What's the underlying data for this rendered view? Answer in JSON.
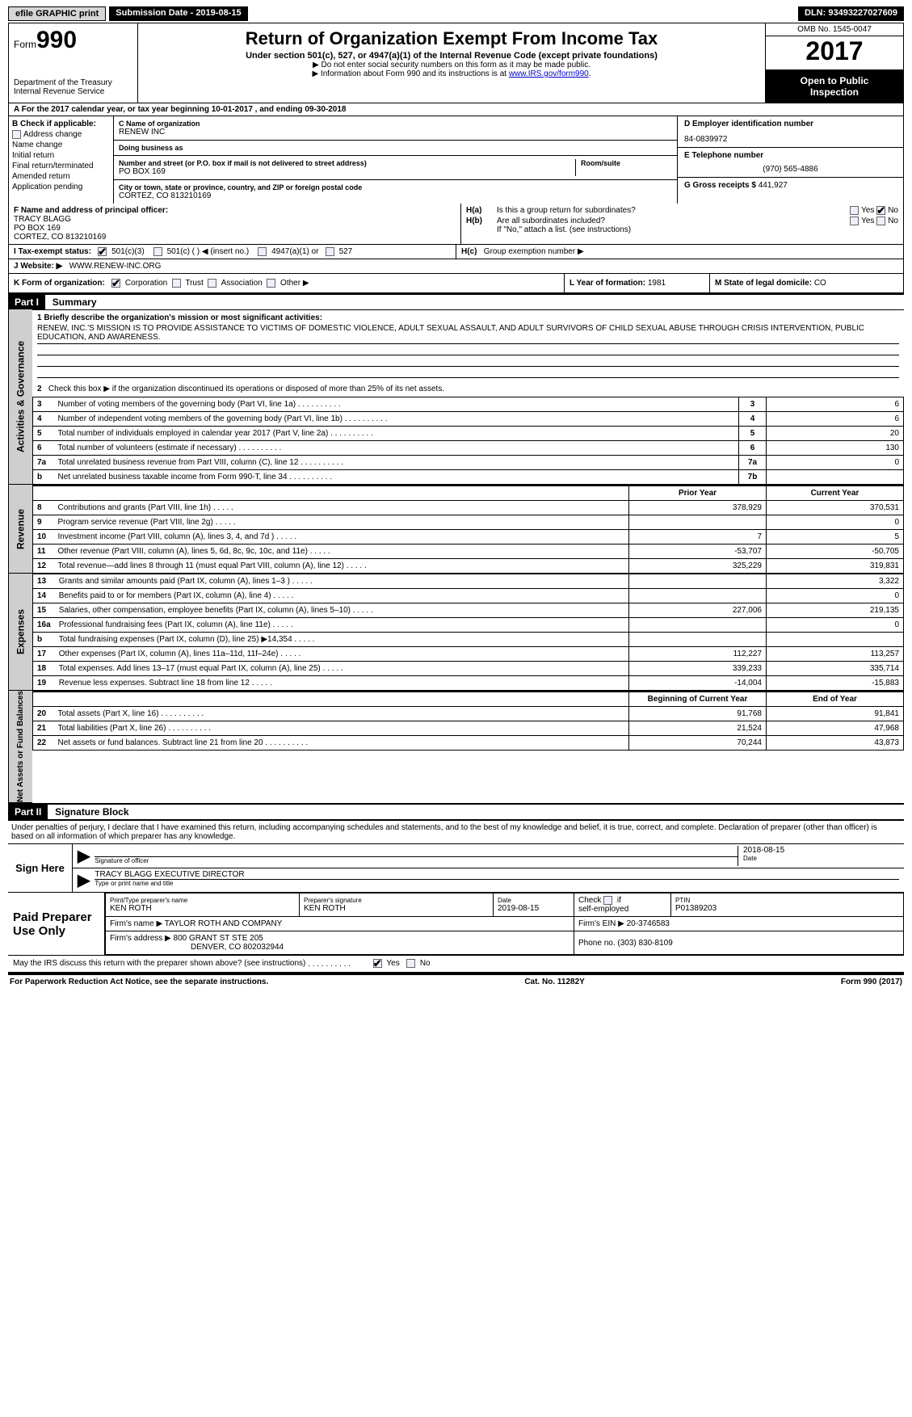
{
  "topbar": {
    "efile": "efile GRAPHIC print",
    "submission": "Submission Date - 2019-08-15",
    "dln": "DLN: 93493227027609"
  },
  "header": {
    "form_label": "Form",
    "form_number": "990",
    "dept1": "Department of the Treasury",
    "dept2": "Internal Revenue Service",
    "title": "Return of Organization Exempt From Income Tax",
    "subtitle": "Under section 501(c), 527, or 4947(a)(1) of the Internal Revenue Code (except private foundations)",
    "note1": "▶ Do not enter social security numbers on this form as it may be made public.",
    "note2_pre": "▶ Information about Form 990 and its instructions is at ",
    "note2_link": "www.IRS.gov/form990",
    "omb": "OMB No. 1545-0047",
    "year": "2017",
    "open1": "Open to Public",
    "open2": "Inspection"
  },
  "row_a": "A  For the 2017 calendar year, or tax year beginning 10-01-2017        , and ending 09-30-2018",
  "section_b": {
    "label": "B Check if applicable:",
    "items": [
      "Address change",
      "Name change",
      "Initial return",
      "Final return/terminated",
      "Amended return",
      "Application pending"
    ]
  },
  "section_c": {
    "name_label": "C Name of organization",
    "name": "RENEW INC",
    "dba_label": "Doing business as",
    "dba": "",
    "addr_label": "Number and street (or P.O. box if mail is not delivered to street address)",
    "room_label": "Room/suite",
    "addr": "PO BOX 169",
    "city_label": "City or town, state or province, country, and ZIP or foreign postal code",
    "city": "CORTEZ, CO  813210169"
  },
  "section_d": {
    "label": "D Employer identification number",
    "ein": "84-0839972",
    "e_label": "E Telephone number",
    "phone": "(970) 565-4886",
    "g_label": "G Gross receipts $",
    "g_val": "441,927"
  },
  "section_f": {
    "label": "F Name and address of principal officer:",
    "name": "TRACY BLAGG",
    "addr1": "PO BOX 169",
    "addr2": "CORTEZ, CO  813210169"
  },
  "section_h": {
    "ha": "Is this a group return for subordinates?",
    "hb": "Are all subordinates included?",
    "hb_note": "If \"No,\" attach a list. (see instructions)",
    "hc": "Group exemption number ▶",
    "yes": "Yes",
    "no": "No"
  },
  "section_i": {
    "label": "I    Tax-exempt status:",
    "opt1": "501(c)(3)",
    "opt2": "501(c) (  ) ◀ (insert no.)",
    "opt3": "4947(a)(1) or",
    "opt4": "527"
  },
  "section_j": {
    "label": "J    Website: ▶",
    "val": "WWW.RENEW-INC.ORG"
  },
  "section_k": {
    "label": "K Form of organization:",
    "opts": [
      "Corporation",
      "Trust",
      "Association",
      "Other ▶"
    ]
  },
  "section_l": {
    "label": "L Year of formation: ",
    "val": "1981"
  },
  "section_m": {
    "label": "M State of legal domicile: ",
    "val": "CO"
  },
  "part1": {
    "hdr": "Part I",
    "title": "Summary",
    "side_gov": "Activities & Governance",
    "side_rev": "Revenue",
    "side_exp": "Expenses",
    "side_net": "Net Assets or Fund Balances",
    "line1_label": "1   Briefly describe the organization's mission or most significant activities:",
    "mission": "RENEW, INC.'S MISSION IS TO PROVIDE ASSISTANCE TO VICTIMS OF DOMESTIC VIOLENCE, ADULT SEXUAL ASSAULT, AND ADULT SURVIVORS OF CHILD SEXUAL ABUSE THROUGH CRISIS INTERVENTION, PUBLIC EDUCATION, AND AWARENESS.",
    "line2": "Check this box ▶      if the organization discontinued its operations or disposed of more than 25% of its net assets.",
    "rows_gov": [
      {
        "n": "3",
        "desc": "Number of voting members of the governing body (Part VI, line 1a)",
        "key": "3",
        "val": "6"
      },
      {
        "n": "4",
        "desc": "Number of independent voting members of the governing body (Part VI, line 1b)",
        "key": "4",
        "val": "6"
      },
      {
        "n": "5",
        "desc": "Total number of individuals employed in calendar year 2017 (Part V, line 2a)",
        "key": "5",
        "val": "20"
      },
      {
        "n": "6",
        "desc": "Total number of volunteers (estimate if necessary)",
        "key": "6",
        "val": "130"
      },
      {
        "n": "7a",
        "desc": "Total unrelated business revenue from Part VIII, column (C), line 12",
        "key": "7a",
        "val": "0"
      },
      {
        "n": "b",
        "desc": "Net unrelated business taxable income from Form 990-T, line 34",
        "key": "7b",
        "val": ""
      }
    ],
    "col_prior": "Prior Year",
    "col_current": "Current Year",
    "rows_rev": [
      {
        "n": "8",
        "desc": "Contributions and grants (Part VIII, line 1h)",
        "p": "378,929",
        "c": "370,531"
      },
      {
        "n": "9",
        "desc": "Program service revenue (Part VIII, line 2g)",
        "p": "",
        "c": "0"
      },
      {
        "n": "10",
        "desc": "Investment income (Part VIII, column (A), lines 3, 4, and 7d )",
        "p": "7",
        "c": "5"
      },
      {
        "n": "11",
        "desc": "Other revenue (Part VIII, column (A), lines 5, 6d, 8c, 9c, 10c, and 11e)",
        "p": "-53,707",
        "c": "-50,705"
      },
      {
        "n": "12",
        "desc": "Total revenue—add lines 8 through 11 (must equal Part VIII, column (A), line 12)",
        "p": "325,229",
        "c": "319,831"
      }
    ],
    "rows_exp": [
      {
        "n": "13",
        "desc": "Grants and similar amounts paid (Part IX, column (A), lines 1–3 )",
        "p": "",
        "c": "3,322"
      },
      {
        "n": "14",
        "desc": "Benefits paid to or for members (Part IX, column (A), line 4)",
        "p": "",
        "c": "0"
      },
      {
        "n": "15",
        "desc": "Salaries, other compensation, employee benefits (Part IX, column (A), lines 5–10)",
        "p": "227,006",
        "c": "219,135"
      },
      {
        "n": "16a",
        "desc": "Professional fundraising fees (Part IX, column (A), line 11e)",
        "p": "",
        "c": "0"
      },
      {
        "n": "b",
        "desc": "Total fundraising expenses (Part IX, column (D), line 25) ▶14,354",
        "p": "SHADE",
        "c": "SHADE"
      },
      {
        "n": "17",
        "desc": "Other expenses (Part IX, column (A), lines 11a–11d, 11f–24e)",
        "p": "112,227",
        "c": "113,257"
      },
      {
        "n": "18",
        "desc": "Total expenses. Add lines 13–17 (must equal Part IX, column (A), line 25)",
        "p": "339,233",
        "c": "335,714"
      },
      {
        "n": "19",
        "desc": "Revenue less expenses. Subtract line 18 from line 12",
        "p": "-14,004",
        "c": "-15,883"
      }
    ],
    "col_begin": "Beginning of Current Year",
    "col_end": "End of Year",
    "rows_net": [
      {
        "n": "20",
        "desc": "Total assets (Part X, line 16)",
        "p": "91,768",
        "c": "91,841"
      },
      {
        "n": "21",
        "desc": "Total liabilities (Part X, line 26)",
        "p": "21,524",
        "c": "47,968"
      },
      {
        "n": "22",
        "desc": "Net assets or fund balances. Subtract line 21 from line 20",
        "p": "70,244",
        "c": "43,873"
      }
    ]
  },
  "part2": {
    "hdr": "Part II",
    "title": "Signature Block",
    "decl": "Under penalties of perjury, I declare that I have examined this return, including accompanying schedules and statements, and to the best of my knowledge and belief, it is true, correct, and complete. Declaration of preparer (other than officer) is based on all information of which preparer has any knowledge.",
    "sign_here": "Sign Here",
    "sig_officer": "Signature of officer",
    "sig_date": "2018-08-15",
    "date_label": "Date",
    "officer_name": "TRACY BLAGG  EXECUTIVE DIRECTOR",
    "type_name": "Type or print name and title",
    "paid": "Paid Preparer Use Only",
    "prep_name_label": "Print/Type preparer's name",
    "prep_name": "KEN ROTH",
    "prep_sig_label": "Preparer's signature",
    "prep_sig": "KEN ROTH",
    "prep_date_label": "Date",
    "prep_date": "2019-08-15",
    "self_emp": "self-employed",
    "check": "Check",
    "ptin_label": "PTIN",
    "ptin": "P01389203",
    "firm_name_label": "Firm's name      ▶",
    "firm_name": "TAYLOR ROTH AND COMPANY",
    "firm_ein_label": "Firm's EIN ▶",
    "firm_ein": "20-3746583",
    "firm_addr_label": "Firm's address ▶",
    "firm_addr1": "800 GRANT ST STE 205",
    "firm_addr2": "DENVER, CO  802032944",
    "firm_phone_label": "Phone no.",
    "firm_phone": "(303) 830-8109",
    "discuss": "May the IRS discuss this return with the preparer shown above? (see instructions)"
  },
  "footer": {
    "left": "For Paperwork Reduction Act Notice, see the separate instructions.",
    "mid": "Cat. No. 11282Y",
    "right": "Form 990 (2017)"
  }
}
